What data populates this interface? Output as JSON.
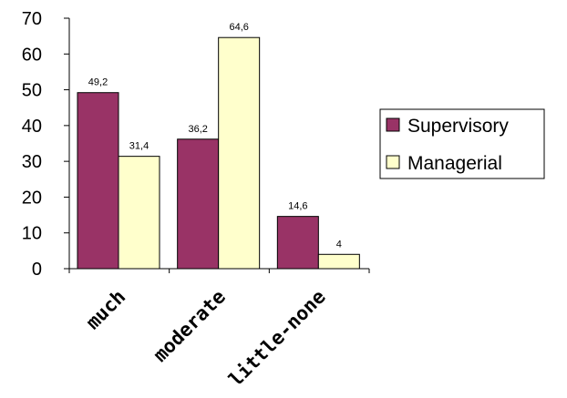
{
  "chart_data": {
    "type": "bar",
    "categories": [
      "much",
      "moderate",
      "little-none"
    ],
    "series": [
      {
        "name": "Supervisory",
        "values": [
          49.2,
          36.2,
          14.6
        ],
        "labels": [
          "49,2",
          "36,2",
          "14,6"
        ],
        "color": "#993366"
      },
      {
        "name": "Managerial",
        "values": [
          31.4,
          64.6,
          4
        ],
        "labels": [
          "31,4",
          "64,6",
          "4"
        ],
        "color": "#ffffcc"
      }
    ],
    "yticks": [
      "0",
      "10",
      "20",
      "30",
      "40",
      "50",
      "60",
      "70"
    ],
    "ylim": [
      0,
      70
    ],
    "grid": false,
    "legend_position": "right",
    "title": "",
    "xlabel": "",
    "ylabel": ""
  }
}
